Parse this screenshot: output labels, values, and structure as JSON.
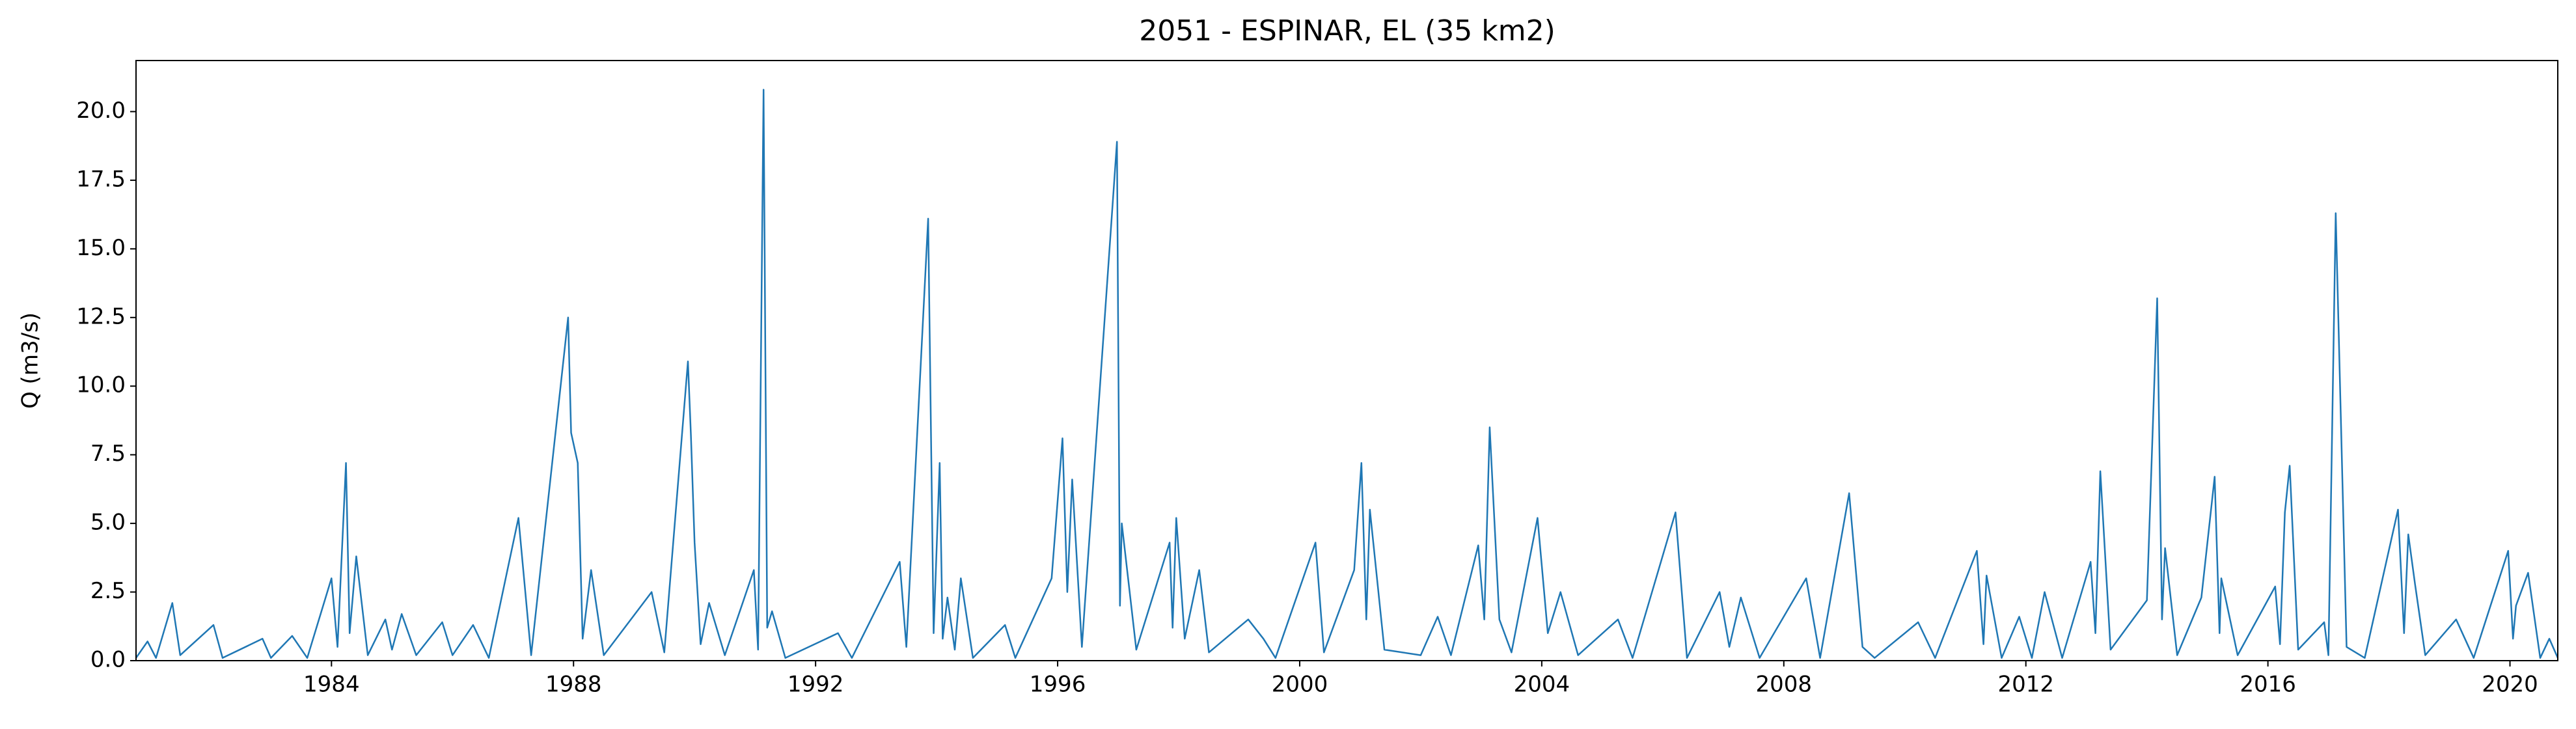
{
  "chart_data": {
    "type": "line",
    "title": "2051 - ESPINAR, EL (35 km2)",
    "y_label": "Q (m3/s)",
    "color": "#1f77b4",
    "grid": false,
    "x": [
      1980.77,
      1980.96,
      1981.1,
      1981.37,
      1981.5,
      1982.05,
      1982.2,
      1982.86,
      1983.0,
      1983.35,
      1983.6,
      1984.0,
      1984.1,
      1984.24,
      1984.3,
      1984.41,
      1984.6,
      1984.89,
      1985.0,
      1985.16,
      1985.4,
      1985.83,
      1986.0,
      1986.34,
      1986.6,
      1987.09,
      1987.3,
      1987.91,
      1987.96,
      1988.07,
      1988.15,
      1988.29,
      1988.5,
      1989.29,
      1989.5,
      1989.89,
      1989.94,
      1990.0,
      1990.1,
      1990.24,
      1990.5,
      1990.98,
      1991.05,
      1991.14,
      1991.2,
      1991.28,
      1991.5,
      1992.37,
      1992.6,
      1993.39,
      1993.5,
      1993.86,
      1993.95,
      1994.05,
      1994.1,
      1994.18,
      1994.3,
      1994.4,
      1994.6,
      1995.13,
      1995.3,
      1995.9,
      1996.08,
      1996.16,
      1996.24,
      1996.4,
      1996.98,
      1997.03,
      1997.06,
      1997.3,
      1997.85,
      1997.9,
      1997.96,
      1998.1,
      1998.34,
      1998.5,
      1999.15,
      1999.4,
      1999.6,
      2000.26,
      2000.4,
      2000.9,
      2001.02,
      2001.1,
      2001.16,
      2001.4,
      2002.0,
      2002.28,
      2002.5,
      2002.95,
      2003.05,
      2003.14,
      2003.3,
      2003.5,
      2003.93,
      2004.1,
      2004.31,
      2004.6,
      2005.26,
      2005.5,
      2006.21,
      2006.4,
      2006.94,
      2007.1,
      2007.29,
      2007.6,
      2008.37,
      2008.6,
      2009.08,
      2009.3,
      2009.5,
      2010.22,
      2010.5,
      2011.19,
      2011.3,
      2011.35,
      2011.6,
      2011.89,
      2012.1,
      2012.31,
      2012.6,
      2013.07,
      2013.15,
      2013.23,
      2013.4,
      2014.0,
      2014.17,
      2014.25,
      2014.3,
      2014.5,
      2014.9,
      2015.12,
      2015.2,
      2015.23,
      2015.5,
      2016.12,
      2016.2,
      2016.28,
      2016.36,
      2016.5,
      2016.93,
      2017.0,
      2017.12,
      2017.3,
      2017.6,
      2018.15,
      2018.25,
      2018.32,
      2018.43,
      2018.6,
      2019.11,
      2019.4,
      2019.97,
      2020.05,
      2020.1,
      2020.3,
      2020.5,
      2020.65,
      2020.79
    ],
    "values": [
      0.1,
      0.7,
      0.1,
      2.1,
      0.2,
      1.3,
      0.1,
      0.8,
      0.1,
      0.9,
      0.1,
      3.0,
      0.5,
      7.2,
      1.0,
      3.8,
      0.2,
      1.5,
      0.4,
      1.7,
      0.2,
      1.4,
      0.2,
      1.3,
      0.1,
      5.2,
      0.2,
      12.5,
      8.3,
      7.2,
      0.8,
      3.3,
      0.2,
      2.5,
      0.3,
      10.9,
      8.2,
      4.3,
      0.6,
      2.1,
      0.2,
      3.3,
      0.4,
      20.8,
      1.2,
      1.8,
      0.1,
      1.0,
      0.1,
      3.6,
      0.5,
      16.1,
      1.0,
      7.2,
      0.8,
      2.3,
      0.4,
      3.0,
      0.1,
      1.3,
      0.1,
      3.0,
      8.1,
      2.5,
      6.6,
      0.5,
      18.9,
      2.0,
      5.0,
      0.4,
      4.3,
      1.2,
      5.2,
      0.8,
      3.3,
      0.3,
      1.5,
      0.8,
      0.1,
      4.3,
      0.3,
      3.3,
      7.2,
      1.5,
      5.5,
      0.4,
      0.2,
      1.6,
      0.2,
      4.2,
      1.5,
      8.5,
      1.5,
      0.3,
      5.2,
      1.0,
      2.5,
      0.2,
      1.5,
      0.1,
      5.4,
      0.1,
      2.5,
      0.5,
      2.3,
      0.1,
      3.0,
      0.1,
      6.1,
      0.5,
      0.1,
      1.4,
      0.1,
      4.0,
      0.6,
      3.1,
      0.1,
      1.6,
      0.1,
      2.5,
      0.1,
      3.6,
      1.0,
      6.9,
      0.4,
      2.2,
      13.2,
      1.5,
      4.1,
      0.2,
      2.3,
      6.7,
      1.0,
      3.0,
      0.2,
      2.7,
      0.6,
      5.4,
      7.1,
      0.4,
      1.4,
      0.2,
      16.3,
      0.5,
      0.1,
      5.5,
      1.0,
      4.6,
      2.8,
      0.2,
      1.5,
      0.1,
      4.0,
      0.8,
      2.0,
      3.2,
      0.1,
      0.8,
      0.1
    ],
    "xlim": [
      1980.77,
      2020.79
    ],
    "xticks": [
      1984,
      1988,
      1992,
      1996,
      2000,
      2004,
      2008,
      2012,
      2016,
      2020
    ],
    "ylim": [
      0,
      21.86
    ],
    "yticks": [
      {
        "value": 0,
        "label": "0.0"
      },
      2.5,
      {
        "value": 5,
        "label": "5.0"
      },
      7.5,
      {
        "value": 10,
        "label": "10.0"
      },
      12.5,
      {
        "value": 15,
        "label": "15.0"
      },
      17.5,
      {
        "value": 20,
        "label": "20.0"
      }
    ]
  }
}
